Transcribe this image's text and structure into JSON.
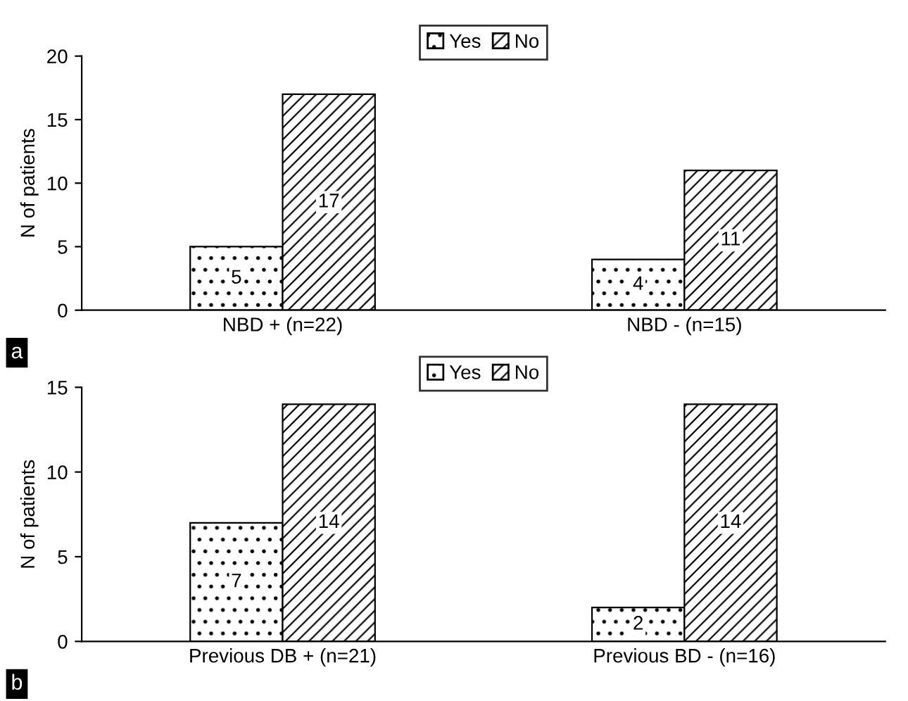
{
  "chart_data": [
    {
      "type": "bar",
      "ylabel": "N of patients",
      "categories": [
        "NBD + (n=22)",
        "NBD - (n=15)"
      ],
      "series": [
        {
          "name": "Yes",
          "color": "#000000",
          "values": [
            5,
            4
          ]
        },
        {
          "name": "No",
          "color": "#000000",
          "values": [
            17,
            11
          ]
        }
      ],
      "ylim": [
        0,
        20
      ],
      "yticks": [
        0,
        5,
        10,
        15,
        20
      ],
      "data_labels": true,
      "legend": "top",
      "grid": false,
      "annotations": [
        "a"
      ]
    },
    {
      "type": "bar",
      "ylabel": "N of patients",
      "categories": [
        "Previous DB + (n=21)",
        "Previous BD - (n=16)"
      ],
      "series": [
        {
          "name": "Yes",
          "color": "#000000",
          "values": [
            7,
            2
          ]
        },
        {
          "name": "No",
          "color": "#000000",
          "values": [
            14,
            14
          ]
        }
      ],
      "ylim": [
        0,
        15
      ],
      "yticks": [
        0,
        5,
        10,
        15
      ],
      "data_labels": true,
      "legend": "top",
      "grid": false,
      "annotations": [
        "b"
      ]
    }
  ]
}
